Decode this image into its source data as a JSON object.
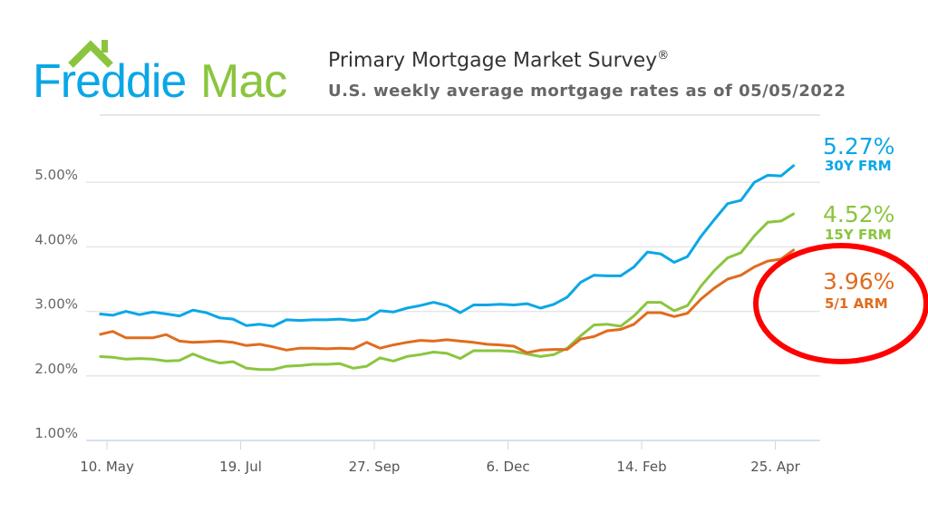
{
  "logo": {
    "text_part1": "Freddie",
    "text_part2": "Mac",
    "icon": "house-roof-icon"
  },
  "header": {
    "title": "Primary Mortgage Market Survey",
    "title_mark": "®",
    "subtitle": "U.S. weekly average mortgage rates as of 05/05/2022"
  },
  "chart_data": {
    "type": "line",
    "title": "Primary Mortgage Market Survey®",
    "subtitle": "U.S. weekly average mortgage rates as of 05/05/2022",
    "x_start": "2021-05-06",
    "x_interval": "weekly",
    "x_ticks": [
      "10. May",
      "19. Jul",
      "27. Sep",
      "6. Dec",
      "14. Feb",
      "25. Apr"
    ],
    "y_ticks": [
      "1.00%",
      "2.00%",
      "3.00%",
      "4.00%",
      "5.00%"
    ],
    "ylim": [
      1,
      5.5
    ],
    "grid": true,
    "series": [
      {
        "name": "30Y FRM",
        "color": "#0aa7e6",
        "last_label": "5.27%",
        "values": [
          2.96,
          2.94,
          3.0,
          2.95,
          2.99,
          2.96,
          2.93,
          3.02,
          2.98,
          2.9,
          2.88,
          2.78,
          2.8,
          2.77,
          2.87,
          2.86,
          2.87,
          2.87,
          2.88,
          2.86,
          2.88,
          3.01,
          2.99,
          3.05,
          3.09,
          3.14,
          3.09,
          2.98,
          3.1,
          3.1,
          3.11,
          3.1,
          3.12,
          3.05,
          3.11,
          3.22,
          3.45,
          3.56,
          3.55,
          3.55,
          3.69,
          3.92,
          3.89,
          3.76,
          3.85,
          4.16,
          4.42,
          4.67,
          4.72,
          5.0,
          5.11,
          5.1,
          5.27
        ]
      },
      {
        "name": "15Y FRM",
        "color": "#8bc53f",
        "last_label": "4.52%",
        "values": [
          2.3,
          2.29,
          2.26,
          2.27,
          2.26,
          2.23,
          2.24,
          2.34,
          2.26,
          2.2,
          2.22,
          2.12,
          2.1,
          2.1,
          2.15,
          2.16,
          2.18,
          2.18,
          2.19,
          2.12,
          2.15,
          2.28,
          2.23,
          2.3,
          2.33,
          2.37,
          2.35,
          2.27,
          2.39,
          2.39,
          2.39,
          2.38,
          2.34,
          2.3,
          2.33,
          2.43,
          2.62,
          2.79,
          2.8,
          2.77,
          2.93,
          3.14,
          3.14,
          3.01,
          3.09,
          3.39,
          3.63,
          3.83,
          3.91,
          4.17,
          4.38,
          4.4,
          4.52
        ]
      },
      {
        "name": "5/1 ARM",
        "color": "#e06c1e",
        "last_label": "3.96%",
        "values": [
          2.64,
          2.69,
          2.59,
          2.59,
          2.59,
          2.64,
          2.54,
          2.52,
          2.53,
          2.54,
          2.52,
          2.47,
          2.49,
          2.45,
          2.4,
          2.43,
          2.43,
          2.42,
          2.43,
          2.42,
          2.52,
          2.43,
          2.48,
          2.52,
          2.55,
          2.54,
          2.56,
          2.54,
          2.52,
          2.49,
          2.48,
          2.46,
          2.36,
          2.4,
          2.41,
          2.41,
          2.57,
          2.61,
          2.7,
          2.72,
          2.8,
          2.98,
          2.98,
          2.92,
          2.97,
          3.19,
          3.36,
          3.5,
          3.56,
          3.69,
          3.78,
          3.81,
          3.96
        ]
      }
    ],
    "annotation": {
      "shape": "ellipse",
      "color": "#ff0000",
      "target": "5/1 ARM"
    }
  }
}
